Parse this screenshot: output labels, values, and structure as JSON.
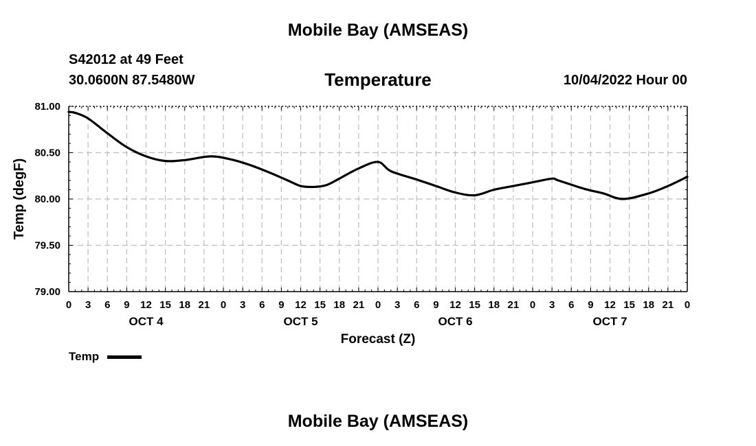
{
  "header": {
    "title": "Mobile Bay (AMSEAS)",
    "station": "S42012 at 49 Feet",
    "coords": "30.0600N  87.5480W",
    "datetime": "10/04/2022 Hour 00"
  },
  "footer": {
    "title": "Mobile Bay (AMSEAS)"
  },
  "chart_data": {
    "type": "line",
    "title": "Temperature",
    "xlabel": "Forecast (Z)",
    "ylabel": "Temp (degF)",
    "ylim": [
      79.0,
      81.0
    ],
    "yticks": [
      "79.00",
      "79.50",
      "80.00",
      "80.50",
      "81.00"
    ],
    "xlim": [
      0,
      96
    ],
    "xtick_step": 3,
    "xtick_labels": [
      "0",
      "3",
      "6",
      "9",
      "12",
      "15",
      "18",
      "21",
      "0",
      "3",
      "6",
      "9",
      "12",
      "15",
      "18",
      "21",
      "0",
      "3",
      "6",
      "9",
      "12",
      "15",
      "18",
      "21",
      "0",
      "3",
      "6",
      "9",
      "12",
      "15",
      "18",
      "21",
      "0"
    ],
    "day_labels": [
      {
        "label": "OCT 4",
        "hour": 12
      },
      {
        "label": "OCT 5",
        "hour": 36
      },
      {
        "label": "OCT 6",
        "hour": 60
      },
      {
        "label": "OCT 7",
        "hour": 84
      }
    ],
    "grid": true,
    "legend": "bottom-left",
    "series": [
      {
        "name": "Temp",
        "color": "#000000",
        "x": [
          0,
          1,
          3,
          6,
          9,
          12,
          15,
          18,
          22,
          25,
          28,
          31,
          34,
          36,
          38,
          40,
          42,
          45,
          48,
          50,
          54,
          57,
          60,
          63,
          66,
          69,
          72,
          75,
          76,
          80,
          83,
          86,
          90,
          93,
          96
        ],
        "values": [
          80.94,
          80.93,
          80.87,
          80.71,
          80.56,
          80.46,
          80.41,
          80.42,
          80.46,
          80.43,
          80.37,
          80.29,
          80.2,
          80.14,
          80.13,
          80.15,
          80.22,
          80.33,
          80.4,
          80.3,
          80.21,
          80.14,
          80.07,
          80.04,
          80.1,
          80.14,
          80.18,
          80.22,
          80.2,
          80.11,
          80.06,
          80.0,
          80.06,
          80.14,
          80.24
        ]
      }
    ]
  }
}
